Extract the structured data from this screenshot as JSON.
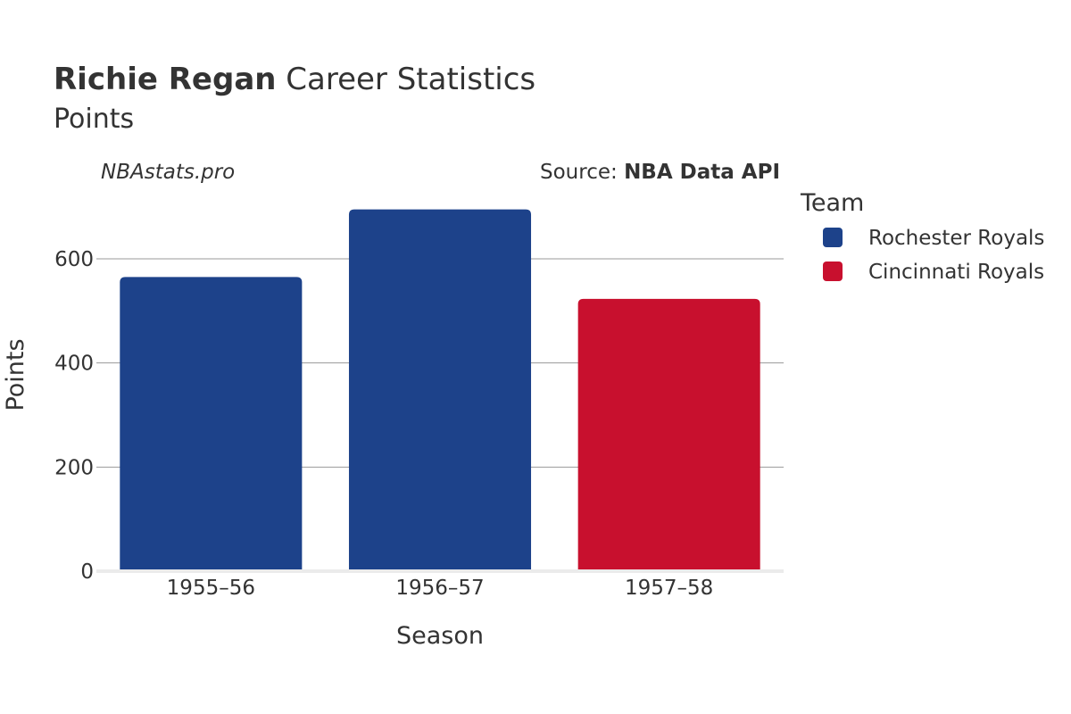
{
  "header": {
    "title_bold": "Richie Regan",
    "title_rest": " Career Statistics",
    "subtitle": "Points",
    "watermark": "NBAstats.pro",
    "source_prefix": "Source: ",
    "source_name": "NBA Data API"
  },
  "legend": {
    "title": "Team",
    "items": [
      {
        "label": "Rochester Royals",
        "color": "#1d428a"
      },
      {
        "label": "Cincinnati Royals",
        "color": "#c8102e"
      }
    ]
  },
  "chart_data": {
    "type": "bar",
    "title": "Richie Regan Career Statistics",
    "subtitle": "Points",
    "xlabel": "Season",
    "ylabel": "Points",
    "categories": [
      "1955–56",
      "1956–57",
      "1957–58"
    ],
    "values": [
      565,
      695,
      523
    ],
    "bar_teams": [
      "Rochester Royals",
      "Rochester Royals",
      "Cincinnati Royals"
    ],
    "bar_colors": [
      "#1d428a",
      "#1d428a",
      "#c8102e"
    ],
    "ylim": [
      0,
      720
    ],
    "yticks": [
      0,
      200,
      400,
      600
    ],
    "grid": true,
    "legend_position": "right"
  }
}
